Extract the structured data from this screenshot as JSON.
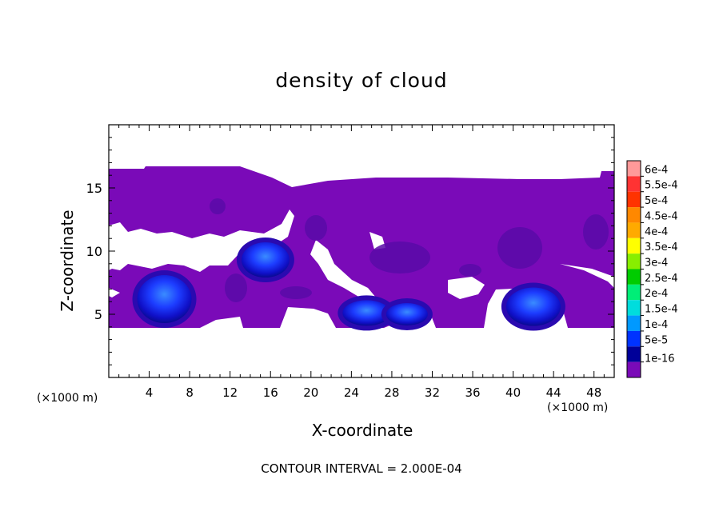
{
  "chart_data": {
    "type": "heatmap",
    "title": "density of cloud",
    "xlabel": "X-coordinate",
    "ylabel": "Z-coordinate",
    "x_unit": "(×1000 m)",
    "z_unit": "(×1000 m)",
    "footnote": "CONTOUR INTERVAL = 2.000E-04",
    "xlim": [
      0,
      50
    ],
    "ylim": [
      0,
      20
    ],
    "x_ticks": [
      4,
      8,
      12,
      16,
      20,
      24,
      28,
      32,
      36,
      40,
      44,
      48
    ],
    "y_ticks": [
      5,
      10,
      15
    ],
    "colorbar": {
      "labels": [
        "6e-4",
        "5.5e-4",
        "5e-4",
        "4.5e-4",
        "4e-4",
        "3.5e-4",
        "3e-4",
        "2.5e-4",
        "2e-4",
        "1.5e-4",
        "1e-4",
        "5e-5",
        "1e-16"
      ],
      "colors": [
        "#ff9999",
        "#ff3333",
        "#ff3300",
        "#ff8800",
        "#ffaa00",
        "#ffff00",
        "#88ee00",
        "#00cc00",
        "#00ee77",
        "#00dddd",
        "#0099ff",
        "#0033ff",
        "#000099",
        "#7a0ab8"
      ]
    },
    "cloud_region": {
      "x": [
        0,
        50
      ],
      "z": [
        4.2,
        16.5
      ],
      "background_value": "1e-16"
    },
    "density_cores": [
      {
        "x": 5.5,
        "z": 6.2,
        "value": "1e-4"
      },
      {
        "x": 15.5,
        "z": 9.3,
        "value": "1e-4"
      },
      {
        "x": 25.5,
        "z": 5.1,
        "value": "1e-4"
      },
      {
        "x": 29.5,
        "z": 5.0,
        "value": "1e-4"
      },
      {
        "x": 42.0,
        "z": 5.6,
        "value": "1e-4"
      }
    ]
  }
}
